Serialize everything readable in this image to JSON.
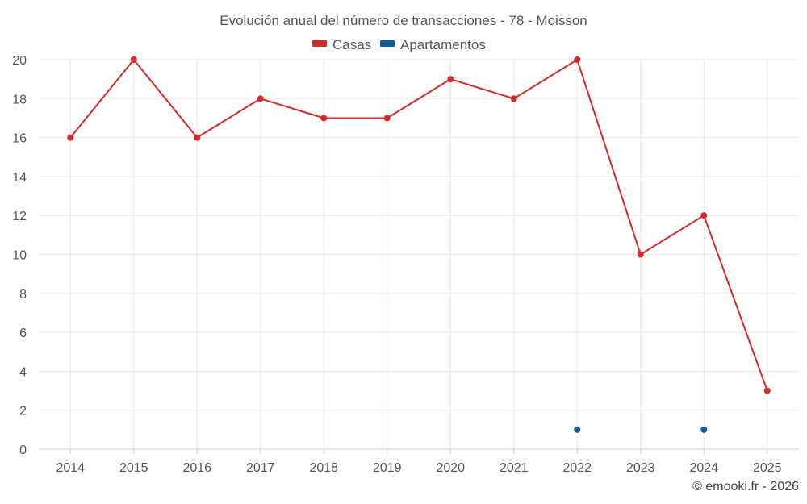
{
  "chart_data": {
    "type": "line",
    "title": "Evolución anual del número de transacciones - 78 - Moisson",
    "categories": [
      "2014",
      "2015",
      "2016",
      "2017",
      "2018",
      "2019",
      "2020",
      "2021",
      "2022",
      "2023",
      "2024",
      "2025"
    ],
    "series": [
      {
        "name": "Casas",
        "color": "#d42a2a",
        "values": [
          16,
          20,
          16,
          18,
          17,
          17,
          19,
          18,
          20,
          10,
          12,
          3
        ]
      },
      {
        "name": "Apartamentos",
        "color": "#0d5e9a",
        "values": [
          null,
          null,
          null,
          null,
          null,
          null,
          null,
          null,
          1,
          null,
          1,
          null
        ]
      }
    ],
    "ylim": [
      0,
      20
    ],
    "yticks": [
      "0",
      "2",
      "4",
      "6",
      "8",
      "10",
      "12",
      "14",
      "16",
      "18",
      "20"
    ],
    "grid": true,
    "legend_position": "top-center",
    "xlabel": "",
    "ylabel": ""
  },
  "credit": "© emooki.fr - 2026"
}
